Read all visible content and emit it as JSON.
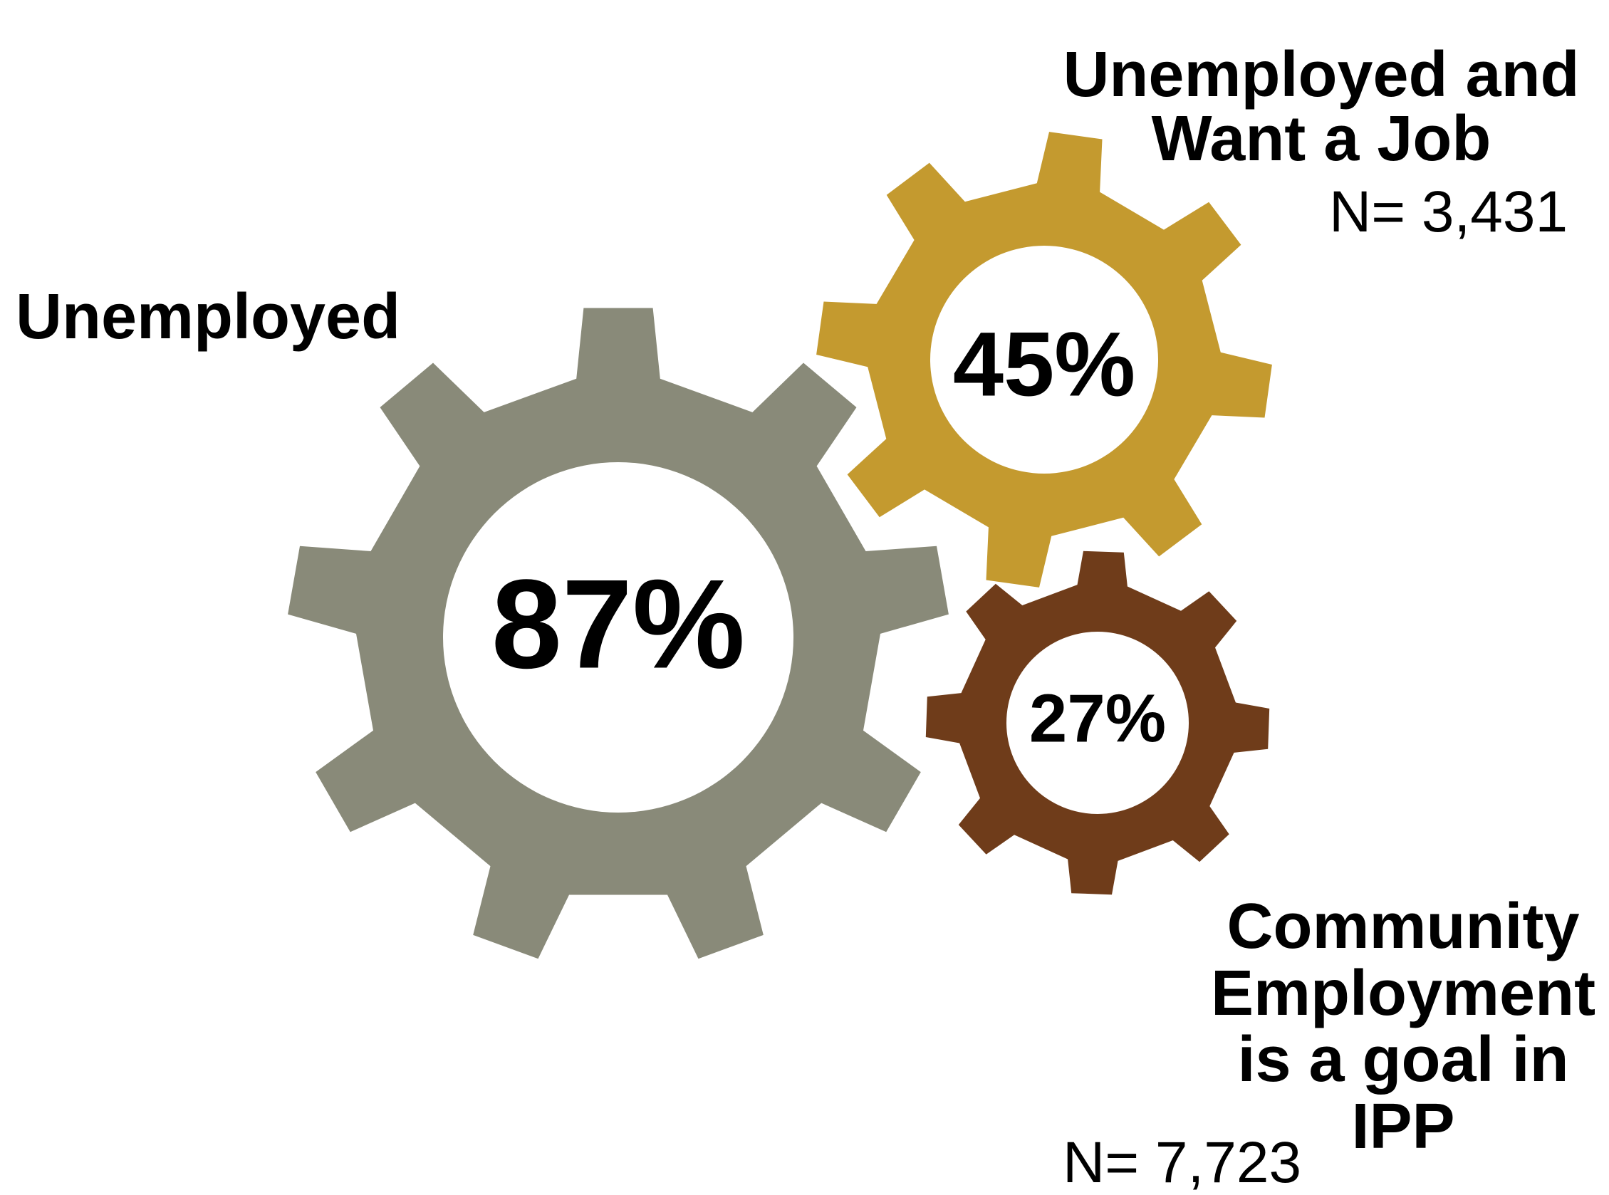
{
  "gears": [
    {
      "id": "unemployed",
      "label": "Unemployed",
      "percent": "87%",
      "n": "",
      "color": "#898a79"
    },
    {
      "id": "want-job",
      "label_lines": [
        "Unemployed and",
        "Want a Job"
      ],
      "percent": "45%",
      "n": "N= 3,431",
      "color": "#c49a2f"
    },
    {
      "id": "community",
      "label_lines": [
        "Community",
        "Employment",
        "is a goal in",
        "IPP"
      ],
      "percent": "27%",
      "n": "N= 7,723",
      "color": "#6f3c1a"
    }
  ]
}
